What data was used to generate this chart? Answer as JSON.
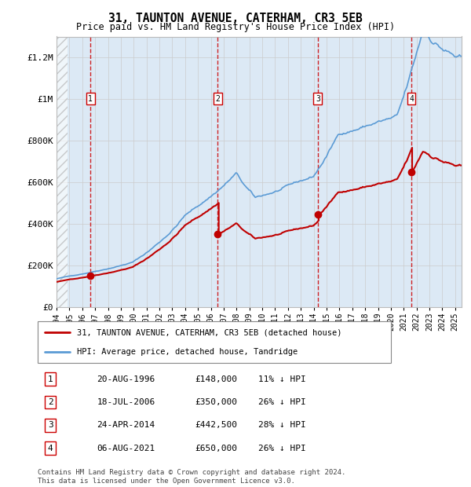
{
  "title": "31, TAUNTON AVENUE, CATERHAM, CR3 5EB",
  "subtitle": "Price paid vs. HM Land Registry's House Price Index (HPI)",
  "ylim": [
    0,
    1300000
  ],
  "yticks": [
    0,
    200000,
    400000,
    600000,
    800000,
    1000000,
    1200000
  ],
  "ytick_labels": [
    "£0",
    "£200K",
    "£400K",
    "£600K",
    "£800K",
    "£1M",
    "£1.2M"
  ],
  "xlim_start": 1994.0,
  "xlim_end": 2025.5,
  "hpi_color": "#5b9bd5",
  "price_color": "#c00000",
  "marker_color": "#c00000",
  "background_color": "#dce9f5",
  "transactions": [
    {
      "label": "1",
      "date": 1996.64,
      "price": 148000
    },
    {
      "label": "2",
      "date": 2006.54,
      "price": 350000
    },
    {
      "label": "3",
      "date": 2014.32,
      "price": 442500
    },
    {
      "label": "4",
      "date": 2021.59,
      "price": 650000
    }
  ],
  "legend_entries": [
    "31, TAUNTON AVENUE, CATERHAM, CR3 5EB (detached house)",
    "HPI: Average price, detached house, Tandridge"
  ],
  "table_rows": [
    {
      "num": "1",
      "date": "20-AUG-1996",
      "price": "£148,000",
      "pct": "11% ↓ HPI"
    },
    {
      "num": "2",
      "date": "18-JUL-2006",
      "price": "£350,000",
      "pct": "26% ↓ HPI"
    },
    {
      "num": "3",
      "date": "24-APR-2014",
      "price": "£442,500",
      "pct": "28% ↓ HPI"
    },
    {
      "num": "4",
      "date": "06-AUG-2021",
      "price": "£650,000",
      "pct": "26% ↓ HPI"
    }
  ],
  "footer": "Contains HM Land Registry data © Crown copyright and database right 2024.\nThis data is licensed under the Open Government Licence v3.0."
}
